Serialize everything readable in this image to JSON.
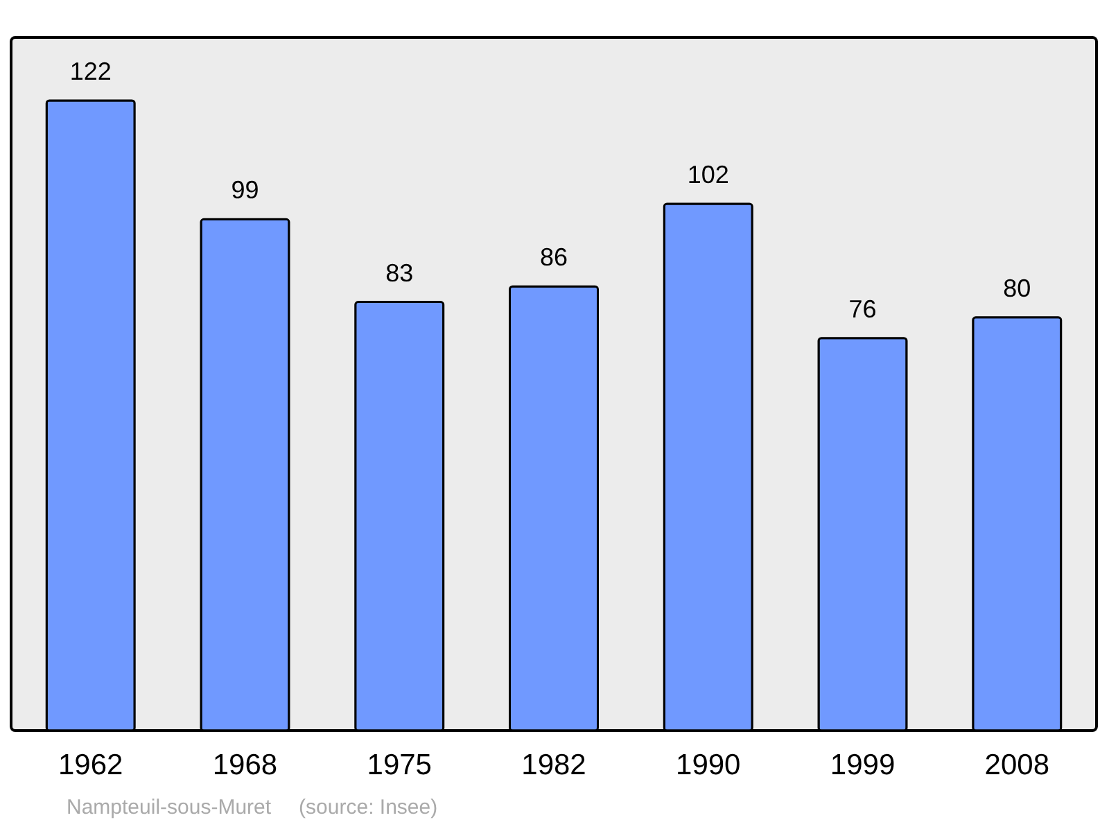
{
  "chart_data": {
    "type": "bar",
    "categories": [
      "1962",
      "1968",
      "1975",
      "1982",
      "1990",
      "1999",
      "2008"
    ],
    "values": [
      122,
      99,
      83,
      86,
      102,
      76,
      80
    ],
    "color": "#7099ff",
    "data_labels": true,
    "annotations": [
      "Nampteuil-sous-Muret",
      "(source: Insee)"
    ]
  }
}
